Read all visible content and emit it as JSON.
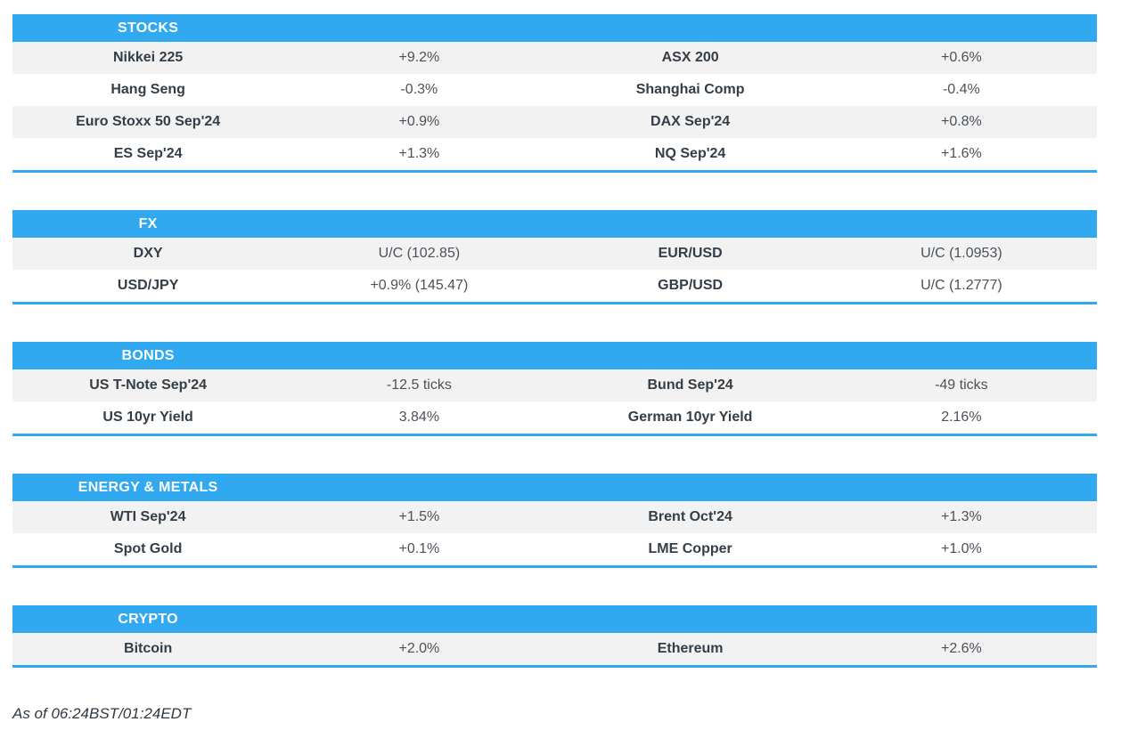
{
  "colors": {
    "accent": "#31a9f0",
    "row_alt": "#f2f2f2",
    "header_text": "#ffffff",
    "label_text": "#333e48",
    "value_text": "#4a525a",
    "footer_text": "#2f3a44"
  },
  "sections": [
    {
      "id": "stocks",
      "title": "STOCKS",
      "rows": [
        [
          "Nikkei 225",
          "+9.2%",
          "ASX 200",
          "+0.6%"
        ],
        [
          "Hang Seng",
          "-0.3%",
          "Shanghai Comp",
          "-0.4%"
        ],
        [
          "Euro Stoxx 50 Sep'24",
          "+0.9%",
          "DAX Sep'24",
          "+0.8%"
        ],
        [
          "ES Sep'24",
          "+1.3%",
          "NQ Sep'24",
          "+1.6%"
        ]
      ]
    },
    {
      "id": "fx",
      "title": "FX",
      "rows": [
        [
          "DXY",
          "U/C (102.85)",
          "EUR/USD",
          "U/C (1.0953)"
        ],
        [
          "USD/JPY",
          "+0.9% (145.47)",
          "GBP/USD",
          "U/C (1.2777)"
        ]
      ]
    },
    {
      "id": "bonds",
      "title": "BONDS",
      "rows": [
        [
          "US T-Note Sep'24",
          "-12.5 ticks",
          "Bund Sep'24",
          "-49 ticks"
        ],
        [
          "US 10yr Yield",
          "3.84%",
          "German 10yr Yield",
          "2.16%"
        ]
      ]
    },
    {
      "id": "energy-metals",
      "title": "ENERGY & METALS",
      "rows": [
        [
          "WTI Sep'24",
          "+1.5%",
          "Brent Oct'24",
          "+1.3%"
        ],
        [
          "Spot Gold",
          "+0.1%",
          "LME Copper",
          "+1.0%"
        ]
      ]
    },
    {
      "id": "crypto",
      "title": "CRYPTO",
      "rows": [
        [
          "Bitcoin",
          "+2.0%",
          "Ethereum",
          "+2.6%"
        ]
      ]
    }
  ],
  "footer": {
    "as_of": "As of 06:24BST/01:24EDT"
  }
}
